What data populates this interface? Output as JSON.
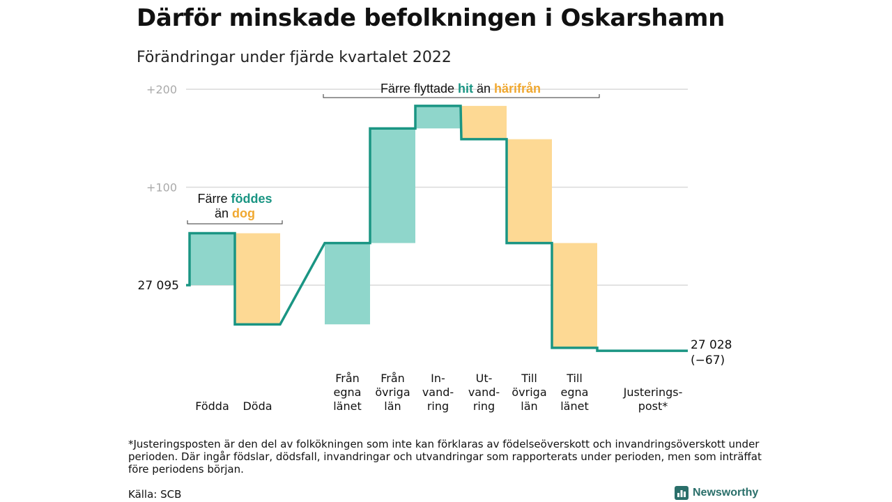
{
  "title": "Därför minskade befolkningen i Oskarshamn",
  "subtitle": "Förändringar under fjärde kvartalet 2022",
  "footnote": "*Justeringsposten är den del av folkökningen som inte kan förklaras av födelseöverskott och invandringsöverskott under perioden. Där ingår födslar, dödsfall, invandringar och utvandringar som rapporterats under perioden, men som inträffat före periodens början.",
  "source": "Källa: SCB",
  "brand": "Newsworthy",
  "colors": {
    "increase": "#8fd6cb",
    "decrease": "#fdd994",
    "line": "#1a9583",
    "teal_text": "#1a9583",
    "orange_text": "#f0a830",
    "grid": "#d9d9d9"
  },
  "chart_data": {
    "type": "waterfall",
    "start_label": "27 095",
    "end_label": "27 028",
    "end_change": "(−67)",
    "y_ticks": [
      "+200",
      "+100"
    ],
    "ylim": [
      -75,
      205
    ],
    "steps": [
      {
        "label": [
          "Födda"
        ],
        "value": 53,
        "kind": "increase"
      },
      {
        "label": [
          "Döda"
        ],
        "value": -93,
        "kind": "decrease"
      },
      {
        "label": [
          "Från",
          "egna",
          "länet"
        ],
        "value": 83,
        "kind": "increase"
      },
      {
        "label": [
          "Från",
          "övriga",
          "län"
        ],
        "value": 117,
        "kind": "increase"
      },
      {
        "label": [
          "In-",
          "vand-",
          "ring"
        ],
        "value": 23,
        "kind": "increase"
      },
      {
        "label": [
          "Ut-",
          "vand-",
          "ring"
        ],
        "value": -34,
        "kind": "decrease"
      },
      {
        "label": [
          "Till",
          "övriga",
          "län"
        ],
        "value": -106,
        "kind": "decrease"
      },
      {
        "label": [
          "Till",
          "egna",
          "länet"
        ],
        "value": -107,
        "kind": "decrease"
      },
      {
        "label": [
          "Justerings-",
          "post*"
        ],
        "value": -3,
        "kind": "adjustment"
      }
    ],
    "annotations": [
      {
        "parts": [
          "Färre ",
          "föddes"
        ],
        "line2": [
          "än ",
          "dog"
        ]
      },
      {
        "parts": [
          "Färre flyttade ",
          "hit",
          " än ",
          "härifrån"
        ]
      }
    ]
  }
}
